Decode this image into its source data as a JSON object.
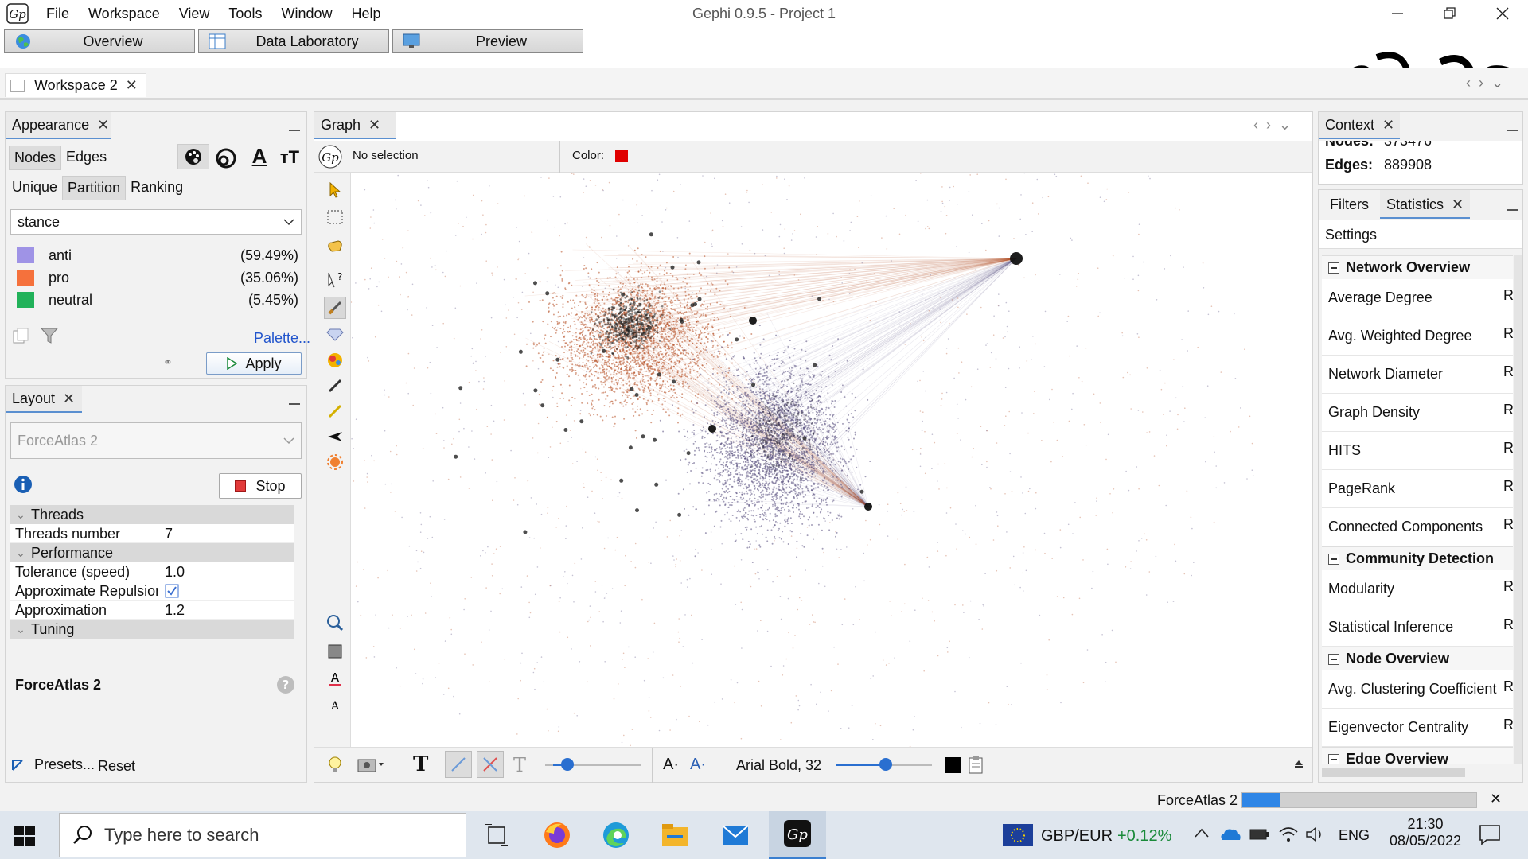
{
  "menu": [
    "File",
    "Workspace",
    "View",
    "Tools",
    "Window",
    "Help"
  ],
  "window_title": "Gephi 0.9.5 - Project 1",
  "modes": {
    "overview": "Overview",
    "data_lab": "Data Laboratory",
    "preview": "Preview"
  },
  "workspace_tab": "Workspace 2",
  "appearance": {
    "title": "Appearance",
    "element_tabs": [
      "Nodes",
      "Edges"
    ],
    "modes": [
      "Unique",
      "Partition",
      "Ranking"
    ],
    "attribute": "stance",
    "legend": [
      {
        "label": "anti",
        "percent": "(59.49%)",
        "color": "#9f93e6"
      },
      {
        "label": "pro",
        "percent": "(35.06%)",
        "color": "#f5713c"
      },
      {
        "label": "neutral",
        "percent": "(5.45%)",
        "color": "#22b25a"
      }
    ],
    "palette_link": "Palette...",
    "apply_label": "Apply"
  },
  "layout": {
    "title": "Layout",
    "algorithm": "ForceAtlas 2",
    "stop_label": "Stop",
    "groups": {
      "threads": "Threads",
      "performance": "Performance",
      "tuning": "Tuning"
    },
    "props": {
      "threads_number": {
        "key": "Threads number",
        "value": "7"
      },
      "tolerance": {
        "key": "Tolerance (speed)",
        "value": "1.0"
      },
      "approx_repulsion": {
        "key": "Approximate Repulsion",
        "checked": true
      },
      "approximation": {
        "key": "Approximation",
        "value": "1.2"
      }
    },
    "description_title": "ForceAtlas 2",
    "presets_label": "Presets...",
    "reset_label": "Reset"
  },
  "graph": {
    "tab": "Graph",
    "selection": "No selection",
    "color_label": "Color:",
    "color_value": "#e00000",
    "font_label": "Arial Bold, 32",
    "cluster_colors": {
      "pro": "#b8542a",
      "anti": "#5a5080"
    }
  },
  "context": {
    "title": "Context",
    "nodes_label": "Nodes:",
    "nodes_value": "373476",
    "edges_label": "Edges:",
    "edges_value": "889908"
  },
  "stats": {
    "tabs": [
      "Filters",
      "Statistics"
    ],
    "settings_label": "Settings",
    "run_label": "R",
    "categories": [
      {
        "name": "Network Overview",
        "items": [
          "Average Degree",
          "Avg. Weighted Degree",
          "Network Diameter",
          "Graph Density",
          "HITS",
          "PageRank",
          "Connected Components"
        ]
      },
      {
        "name": "Community Detection",
        "items": [
          "Modularity",
          "Statistical Inference"
        ]
      },
      {
        "name": "Node Overview",
        "items": [
          "Avg. Clustering Coefficient",
          "Eigenvector Centrality"
        ]
      },
      {
        "name": "Edge Overview",
        "items": []
      }
    ]
  },
  "status": {
    "task": "ForceAtlas 2",
    "progress": 0.16
  },
  "taskbar": {
    "search_placeholder": "Type here to search",
    "ticker": "GBP/EUR",
    "ticker_change": "+0.12%",
    "lang": "ENG",
    "time": "21:30",
    "date": "08/05/2022"
  }
}
